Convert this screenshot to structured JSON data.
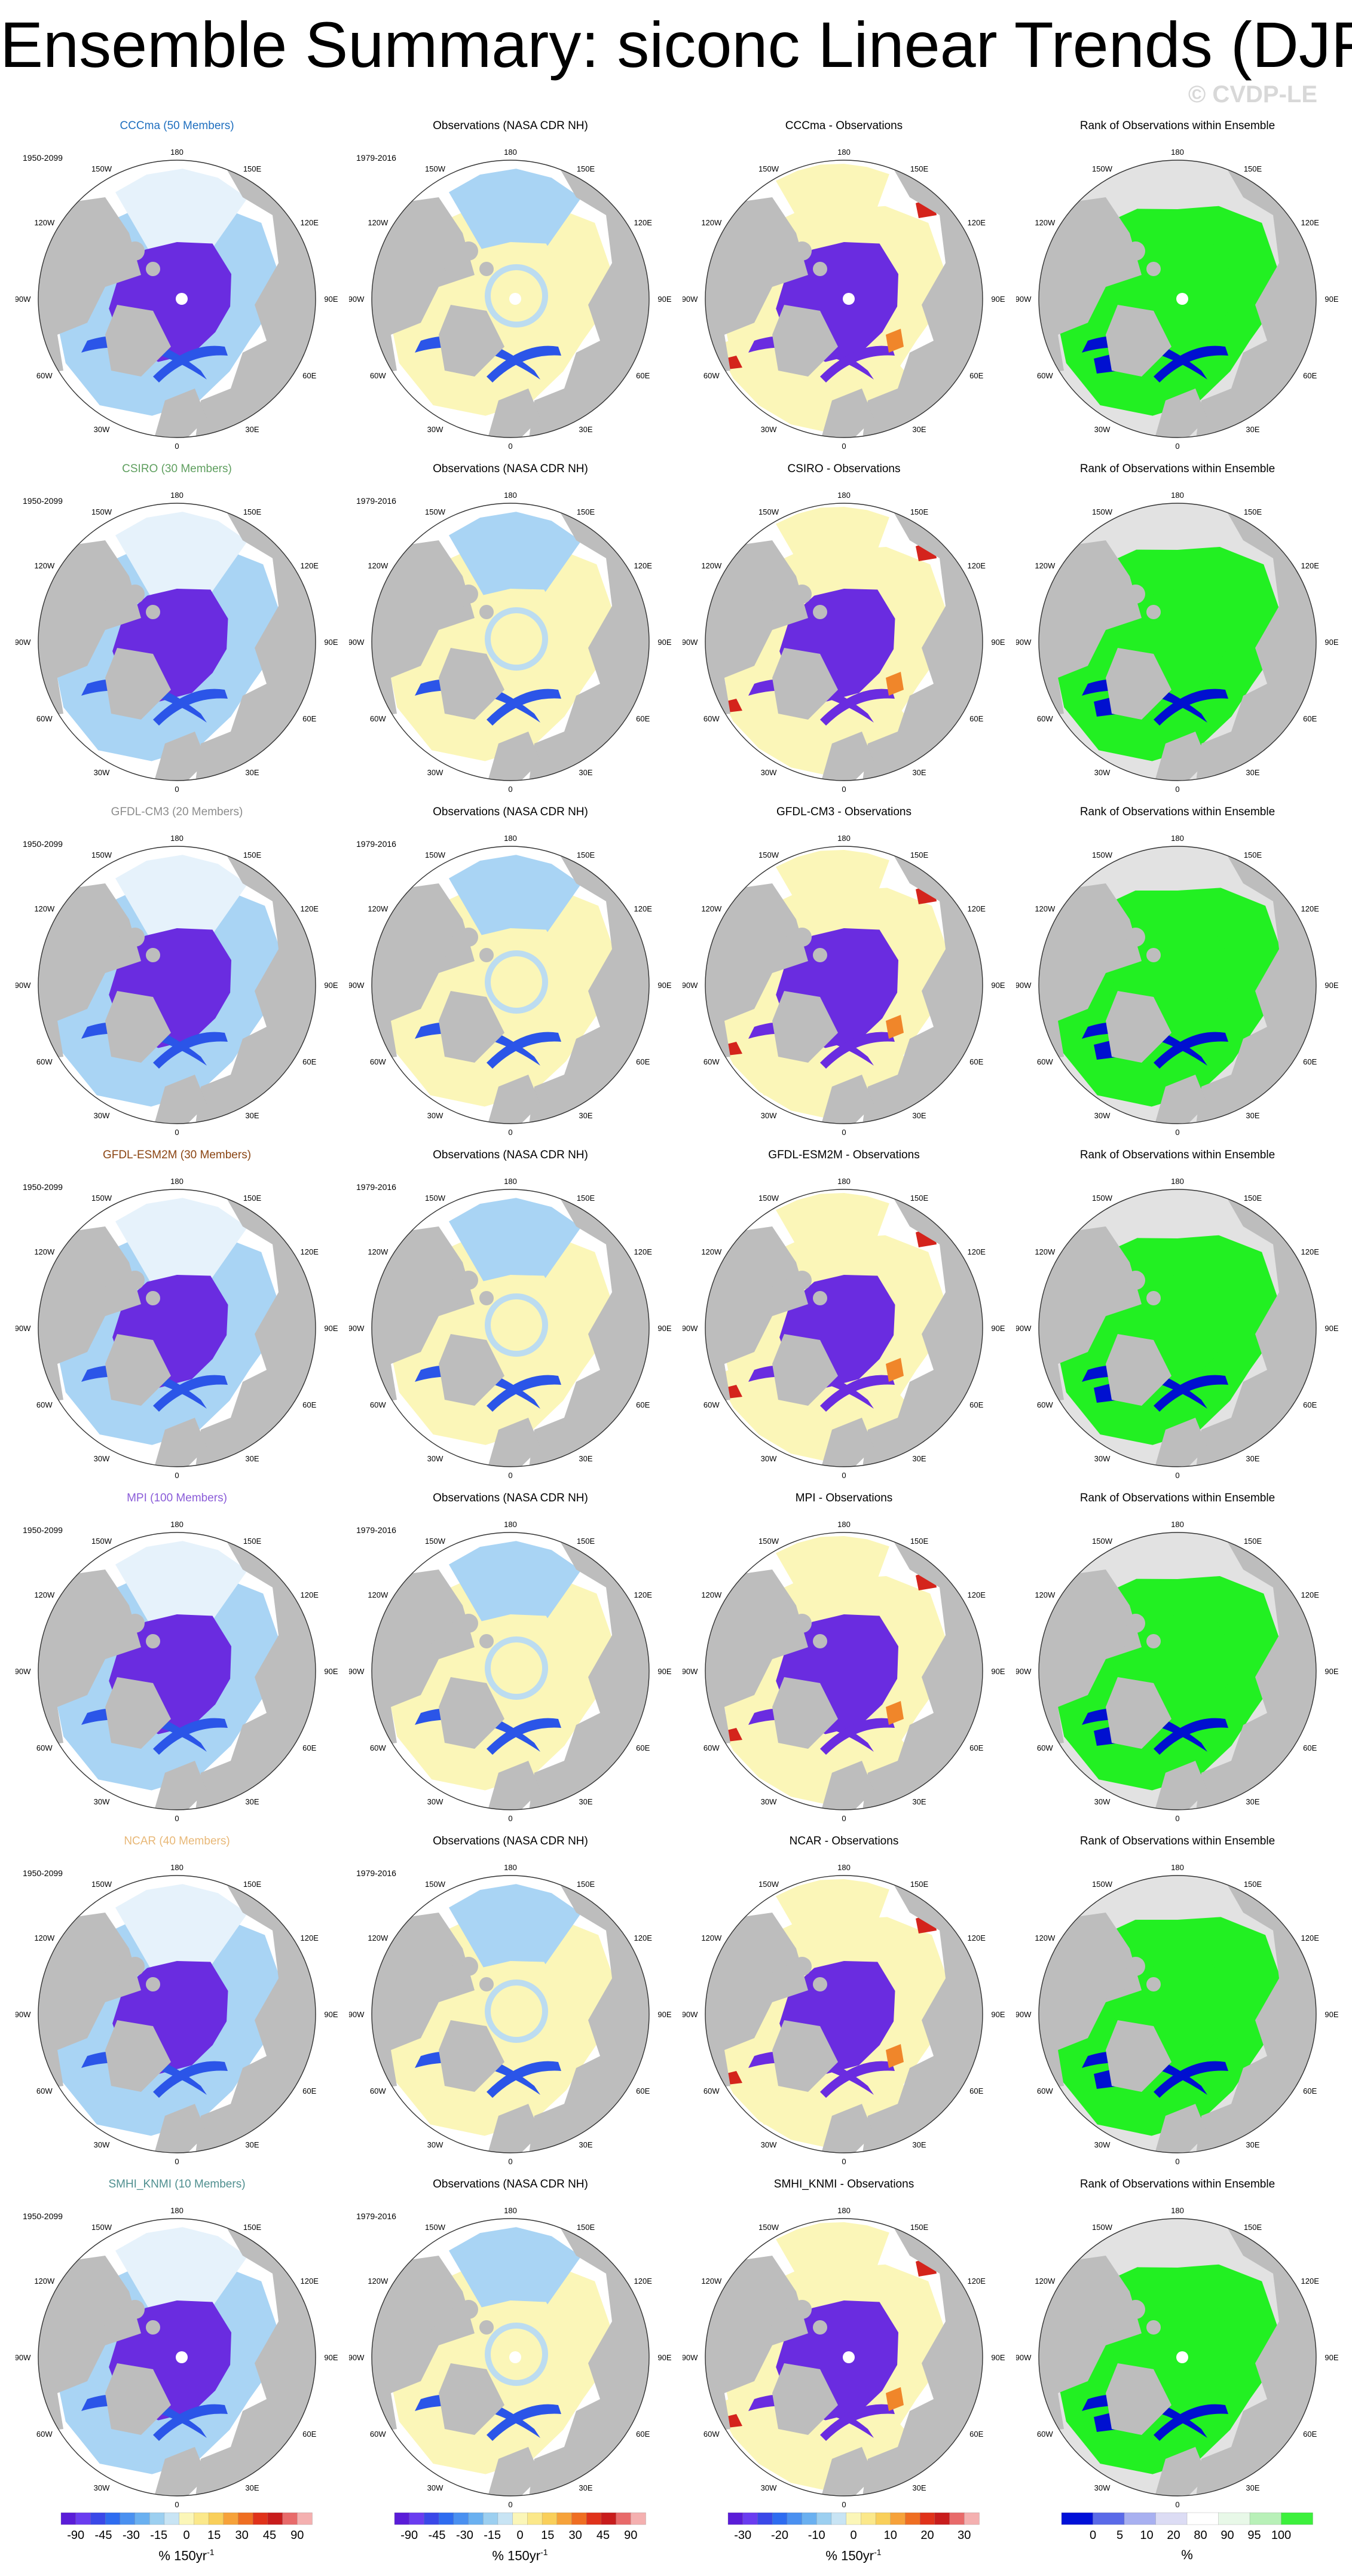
{
  "title": "Ensemble Summary: siconc Linear Trends (DJF)",
  "watermark": "© CVDP-LE",
  "lon_labels": {
    "n180": "180",
    "w150": "150W",
    "e150": "150E",
    "w120": "120W",
    "e120": "120E",
    "w90": "90W",
    "e90": "90E",
    "w60": "60W",
    "e60": "60E",
    "w30": "30W",
    "e30": "30E",
    "s0": "0"
  },
  "rows": [
    {
      "model": "CCCma (50 Members)",
      "model_color": "#1f6fbf",
      "period_model": "1950-2099",
      "obs_title": "Observations (NASA CDR NH)",
      "period_obs": "1979-2016",
      "diff_title": "CCCma - Observations",
      "rank_title": "Rank of Observations within Ensemble"
    },
    {
      "model": "CSIRO (30 Members)",
      "model_color": "#5f9f5f",
      "period_model": "1950-2099",
      "obs_title": "Observations (NASA CDR NH)",
      "period_obs": "1979-2016",
      "diff_title": "CSIRO - Observations",
      "rank_title": "Rank of Observations within Ensemble"
    },
    {
      "model": "GFDL-CM3 (20 Members)",
      "model_color": "#8c8c8c",
      "period_model": "1950-2099",
      "obs_title": "Observations (NASA CDR NH)",
      "period_obs": "1979-2016",
      "diff_title": "GFDL-CM3 - Observations",
      "rank_title": "Rank of Observations within Ensemble"
    },
    {
      "model": "GFDL-ESM2M (30 Members)",
      "model_color": "#8b4513",
      "period_model": "1950-2099",
      "obs_title": "Observations (NASA CDR NH)",
      "period_obs": "1979-2016",
      "diff_title": "GFDL-ESM2M - Observations",
      "rank_title": "Rank of Observations within Ensemble"
    },
    {
      "model": "MPI (100 Members)",
      "model_color": "#8a5cd8",
      "period_model": "1950-2099",
      "obs_title": "Observations (NASA CDR NH)",
      "period_obs": "1979-2016",
      "diff_title": "MPI - Observations",
      "rank_title": "Rank of Observations within Ensemble"
    },
    {
      "model": "NCAR (40 Members)",
      "model_color": "#e8b878",
      "period_model": "1950-2099",
      "obs_title": "Observations (NASA CDR NH)",
      "period_obs": "1979-2016",
      "diff_title": "NCAR - Observations",
      "rank_title": "Rank of Observations within Ensemble"
    },
    {
      "model": "SMHI_KNMI (10 Members)",
      "model_color": "#4f8f8f",
      "period_model": "1950-2099",
      "obs_title": "Observations (NASA CDR NH)",
      "period_obs": "1979-2016",
      "diff_title": "SMHI_KNMI - Observations",
      "rank_title": "Rank of Observations within Ensemble"
    }
  ],
  "colorbars": {
    "trend": {
      "ticks": [
        "-90",
        "-45",
        "-30",
        "-15",
        "0",
        "15",
        "30",
        "45",
        "90"
      ],
      "unit": "% 150yr",
      "unit_sup": "-1",
      "colors": [
        "#5a1cd8",
        "#6a3cf0",
        "#3a48e8",
        "#2e6cf0",
        "#4a90f0",
        "#6ab0f0",
        "#9ccff0",
        "#c8e4f4",
        "#fbf6b8",
        "#fbe88a",
        "#f9cf5a",
        "#f6a23a",
        "#ef6e22",
        "#e0321a",
        "#c81c1c",
        "#e86a6a",
        "#f4b0b0"
      ]
    },
    "obs": {
      "ticks": [
        "-90",
        "-45",
        "-30",
        "-15",
        "0",
        "15",
        "30",
        "45",
        "90"
      ],
      "unit": "% 150yr",
      "unit_sup": "-1",
      "colors": [
        "#5a1cd8",
        "#6a3cf0",
        "#3a48e8",
        "#2e6cf0",
        "#4a90f0",
        "#6ab0f0",
        "#9ccff0",
        "#c8e4f4",
        "#fbf6b8",
        "#fbe88a",
        "#f9cf5a",
        "#f6a23a",
        "#ef6e22",
        "#e0321a",
        "#c81c1c",
        "#e86a6a",
        "#f4b0b0"
      ]
    },
    "diff": {
      "ticks": [
        "-30",
        "-20",
        "-10",
        "0",
        "10",
        "20",
        "30"
      ],
      "unit": "% 150yr",
      "unit_sup": "-1",
      "colors": [
        "#5a1cd8",
        "#6a3cf0",
        "#3a48e8",
        "#2e6cf0",
        "#4a90f0",
        "#6ab0f0",
        "#9ccff0",
        "#c8e4f4",
        "#fbf6b8",
        "#fbe88a",
        "#f9cf5a",
        "#f6a23a",
        "#ef6e22",
        "#e0321a",
        "#c81c1c",
        "#e86a6a",
        "#f4b0b0"
      ]
    },
    "rank": {
      "ticks": [
        "0",
        "5",
        "10",
        "20",
        "80",
        "90",
        "95",
        "100"
      ],
      "unit": "%",
      "colors": [
        "#0010d8",
        "#5a6ae8",
        "#a8b0f0",
        "#dcdcf4",
        "#ffffff",
        "#e8f8e8",
        "#b8f0b8",
        "#3cf03c"
      ]
    }
  },
  "colors": {
    "land": "#bdbdbd",
    "ocean": "#ffffff",
    "rank_bg": "#e2e2e2",
    "rank_high": "#22f022",
    "rank_low": "#0010d0",
    "obs_yellow": "#fbf6b8",
    "purple": "#6a2ce0",
    "blue": "#2b55e8",
    "lightblue": "#a9d4f4",
    "red": "#d4241c",
    "orange": "#f0862a"
  }
}
